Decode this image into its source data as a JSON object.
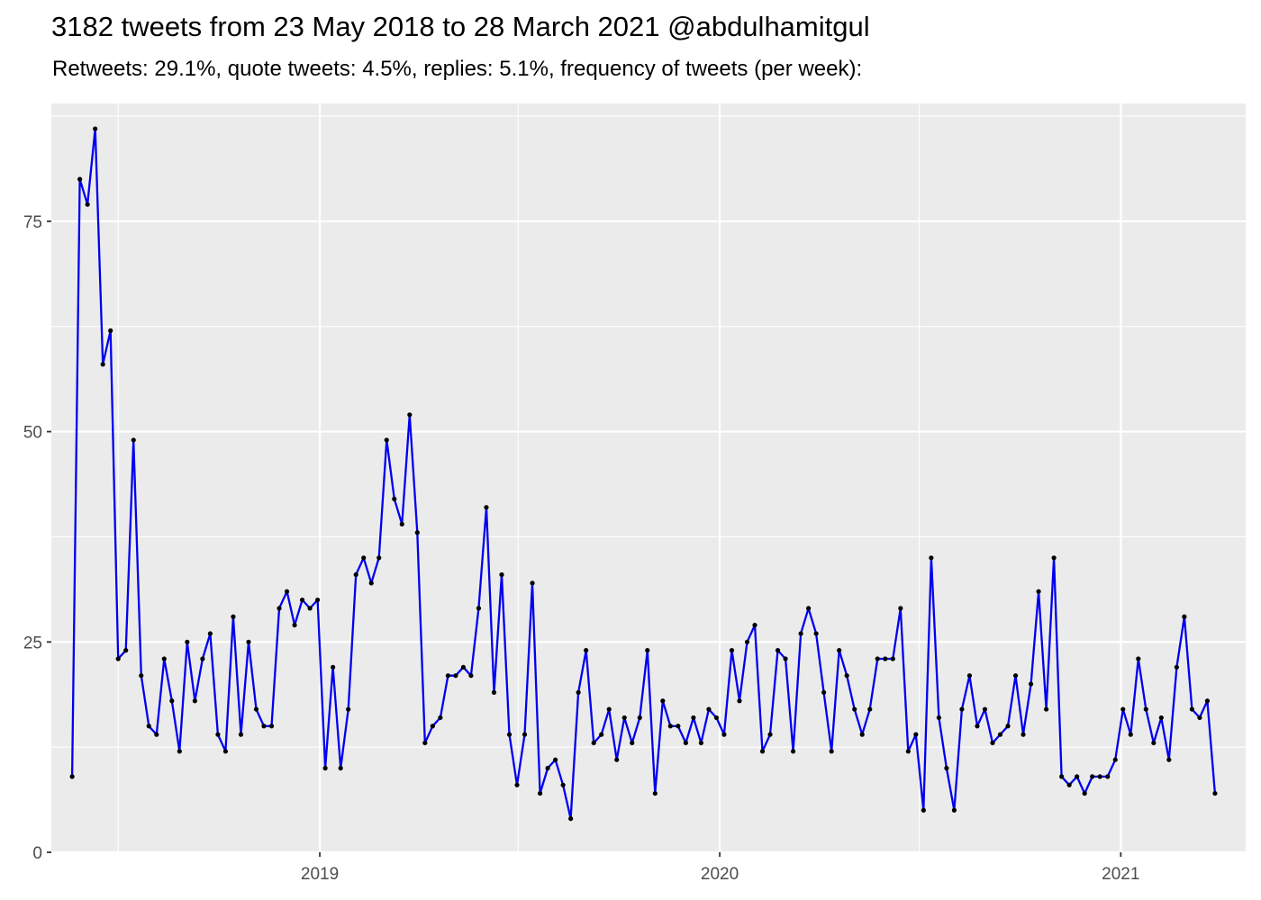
{
  "chart_data": {
    "type": "line",
    "title": "3182 tweets from 23 May 2018 to 28 March 2021 @abdulhamitgul",
    "subtitle": "Retweets: 29.1%, quote tweets: 4.5%, replies: 5.1%, frequency of tweets (per week):",
    "xlabel": "",
    "ylabel": "",
    "x_ticks": [
      "2019",
      "2020",
      "2021"
    ],
    "y_ticks": [
      0,
      25,
      50,
      75
    ],
    "x_range": [
      "2018-05-01",
      "2021-04-25"
    ],
    "ylim": [
      0,
      89
    ],
    "grid": true,
    "line_color": "#0000ee",
    "point_color": "#000000",
    "panel_color": "#ebebeb",
    "series": [
      {
        "x": [
          "2018-05-20",
          "2018-05-27",
          "2018-06-03",
          "2018-06-10",
          "2018-06-17",
          "2018-06-24",
          "2018-07-01",
          "2018-07-08",
          "2018-07-15",
          "2018-07-22",
          "2018-07-29",
          "2018-08-05",
          "2018-08-12",
          "2018-08-19",
          "2018-08-26",
          "2018-09-02",
          "2018-09-09",
          "2018-09-16",
          "2018-09-23",
          "2018-09-30",
          "2018-10-07",
          "2018-10-14",
          "2018-10-21",
          "2018-10-28",
          "2018-11-04",
          "2018-11-11",
          "2018-11-18",
          "2018-11-25",
          "2018-12-02",
          "2018-12-09",
          "2018-12-16",
          "2018-12-23",
          "2018-12-30",
          "2019-01-06",
          "2019-01-13",
          "2019-01-20",
          "2019-01-27",
          "2019-02-03",
          "2019-02-10",
          "2019-02-17",
          "2019-02-24",
          "2019-03-03",
          "2019-03-10",
          "2019-03-17",
          "2019-03-24",
          "2019-03-31",
          "2019-04-07",
          "2019-04-14",
          "2019-04-21",
          "2019-04-28",
          "2019-05-05",
          "2019-05-12",
          "2019-05-19",
          "2019-05-26",
          "2019-06-02",
          "2019-06-09",
          "2019-06-16",
          "2019-06-23",
          "2019-06-30",
          "2019-07-07",
          "2019-07-14",
          "2019-07-21",
          "2019-07-28",
          "2019-08-04",
          "2019-08-11",
          "2019-08-18",
          "2019-08-25",
          "2019-09-01",
          "2019-09-08",
          "2019-09-15",
          "2019-09-22",
          "2019-09-29",
          "2019-10-06",
          "2019-10-13",
          "2019-10-20",
          "2019-10-27",
          "2019-11-03",
          "2019-11-10",
          "2019-11-17",
          "2019-11-24",
          "2019-12-01",
          "2019-12-08",
          "2019-12-15",
          "2019-12-22",
          "2019-12-29",
          "2020-01-05",
          "2020-01-12",
          "2020-01-19",
          "2020-01-26",
          "2020-02-02",
          "2020-02-09",
          "2020-02-16",
          "2020-02-23",
          "2020-03-01",
          "2020-03-08",
          "2020-03-15",
          "2020-03-22",
          "2020-03-29",
          "2020-04-05",
          "2020-04-12",
          "2020-04-19",
          "2020-04-26",
          "2020-05-03",
          "2020-05-10",
          "2020-05-17",
          "2020-05-24",
          "2020-05-31",
          "2020-06-07",
          "2020-06-14",
          "2020-06-21",
          "2020-06-28",
          "2020-07-05",
          "2020-07-12",
          "2020-07-19",
          "2020-07-26",
          "2020-08-02",
          "2020-08-09",
          "2020-08-16",
          "2020-08-23",
          "2020-08-30",
          "2020-09-06",
          "2020-09-13",
          "2020-09-20",
          "2020-09-27",
          "2020-10-04",
          "2020-10-11",
          "2020-10-18",
          "2020-10-25",
          "2020-11-01",
          "2020-11-08",
          "2020-11-15",
          "2020-11-22",
          "2020-11-29",
          "2020-12-06",
          "2020-12-13",
          "2020-12-20",
          "2020-12-27",
          "2021-01-03",
          "2021-01-10",
          "2021-01-17",
          "2021-01-24",
          "2021-01-31",
          "2021-02-07",
          "2021-02-14",
          "2021-02-21",
          "2021-02-28",
          "2021-03-07",
          "2021-03-14",
          "2021-03-21",
          "2021-03-28"
        ],
        "y": [
          9,
          80,
          77,
          86,
          58,
          62,
          23,
          24,
          49,
          21,
          15,
          14,
          23,
          18,
          12,
          25,
          18,
          23,
          26,
          14,
          12,
          28,
          14,
          25,
          17,
          15,
          15,
          29,
          31,
          27,
          30,
          29,
          30,
          10,
          22,
          10,
          17,
          33,
          35,
          32,
          35,
          49,
          42,
          39,
          52,
          38,
          13,
          15,
          16,
          21,
          21,
          22,
          21,
          29,
          41,
          19,
          33,
          14,
          8,
          14,
          32,
          7,
          10,
          11,
          8,
          4,
          19,
          24,
          13,
          14,
          17,
          11,
          16,
          13,
          16,
          24,
          7,
          18,
          15,
          15,
          13,
          16,
          13,
          17,
          16,
          14,
          24,
          18,
          25,
          27,
          12,
          14,
          24,
          23,
          12,
          26,
          29,
          26,
          19,
          12,
          24,
          21,
          17,
          14,
          17,
          23,
          23,
          23,
          29,
          12,
          14,
          5,
          35,
          16,
          10,
          5,
          17,
          21,
          15,
          17,
          13,
          14,
          15,
          21,
          14,
          20,
          31,
          17,
          35,
          9,
          8,
          9,
          7,
          9,
          9,
          9,
          11,
          17,
          14,
          23,
          17,
          13,
          16,
          11,
          22,
          28,
          17,
          16,
          18,
          7
        ]
      }
    ]
  }
}
